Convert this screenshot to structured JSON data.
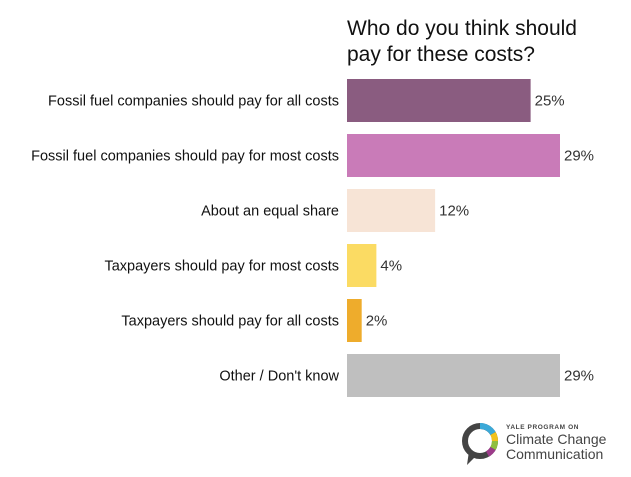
{
  "chart_data": {
    "type": "bar",
    "orientation": "horizontal",
    "title": [
      "Who do you think should",
      "pay for these costs?"
    ],
    "categories": [
      "Fossil fuel companies should pay for all costs",
      "Fossil fuel companies should pay for most costs",
      "About an equal share",
      "Taxpayers should pay for most costs",
      "Taxpayers should pay for all costs",
      "Other / Don't know"
    ],
    "values": [
      25,
      29,
      12,
      4,
      2,
      29
    ],
    "value_labels": [
      "25%",
      "29%",
      "12%",
      "4%",
      "2%",
      "29%"
    ],
    "colors": [
      "#8a5c80",
      "#c97bb8",
      "#f7e4d6",
      "#fbdb63",
      "#eeac2c",
      "#bfbfbf"
    ],
    "xlim": [
      0,
      29
    ],
    "grid": false,
    "legend": "none"
  },
  "logo": {
    "line1": "YALE PROGRAM ON",
    "line2": "Climate Change",
    "line3": "Communication",
    "ring_colors": [
      "#3ba9d8",
      "#f2c21b",
      "#8fbf3f",
      "#9c3b8a"
    ]
  }
}
